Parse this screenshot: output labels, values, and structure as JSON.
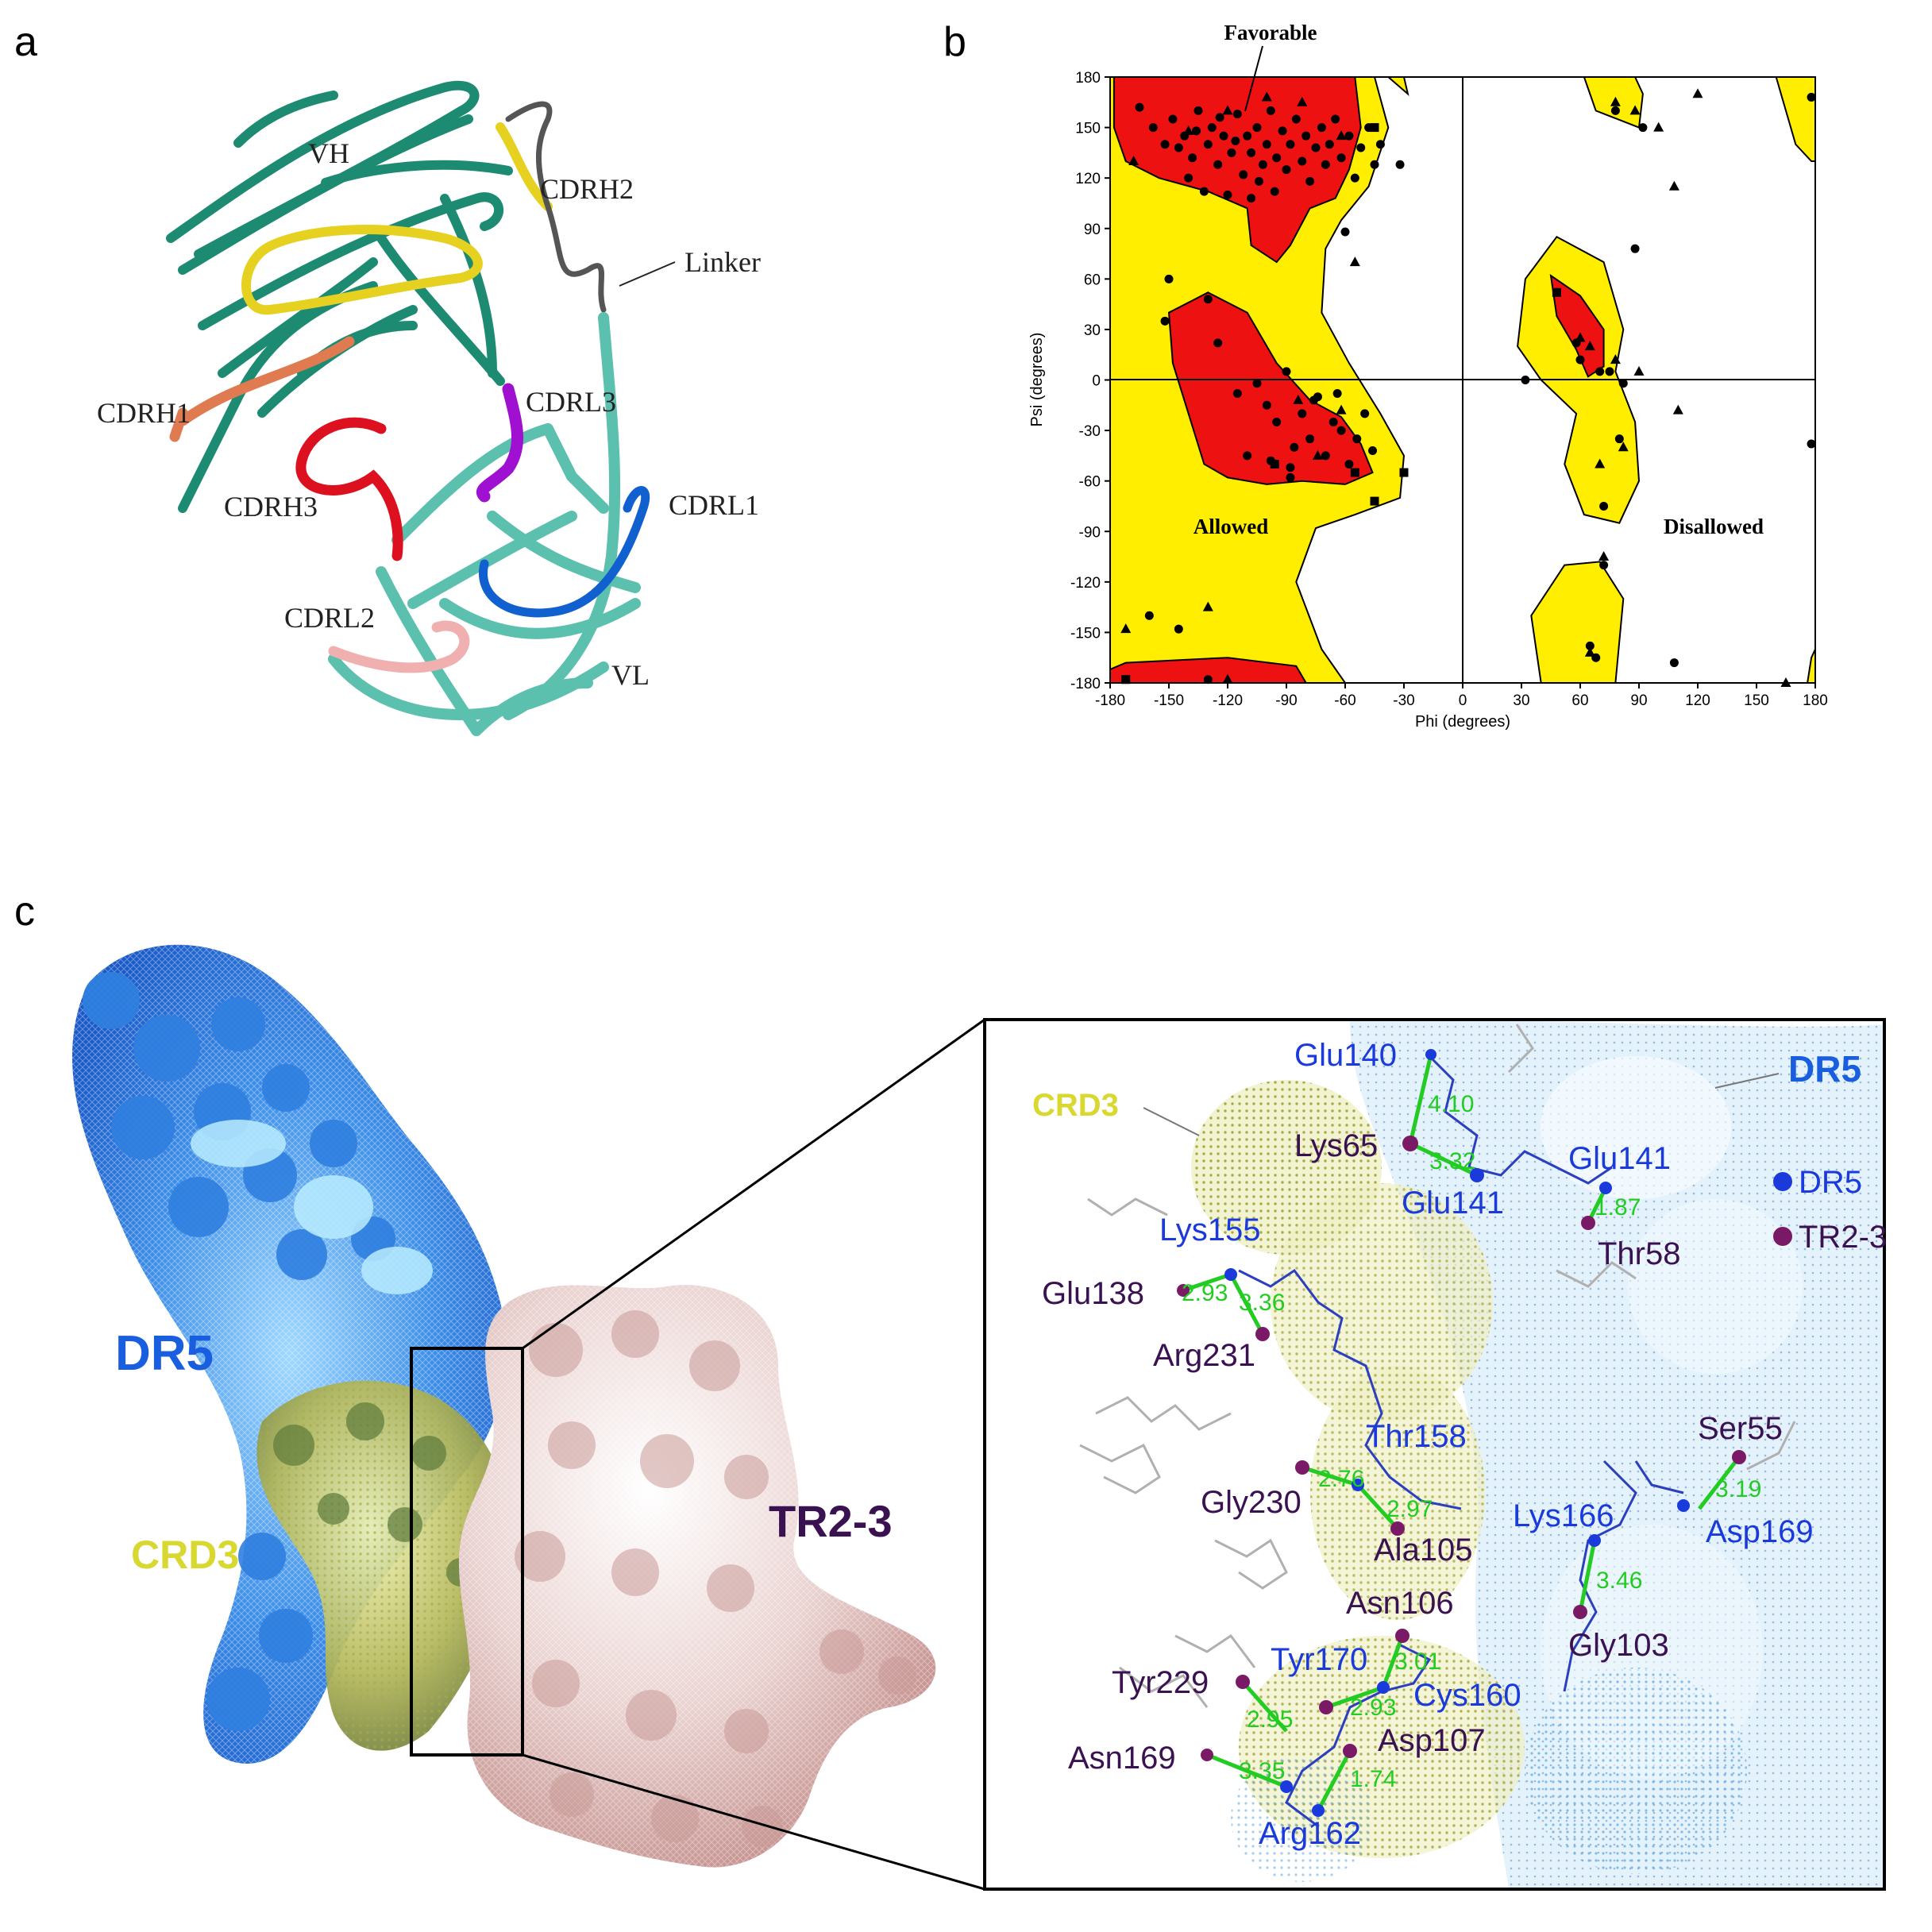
{
  "panels": {
    "a": "a",
    "b": "b",
    "c": "c"
  },
  "panel_a": {
    "labels": {
      "vh": "VH",
      "cdrh2": "CDRH2",
      "linker": "Linker",
      "cdrh1": "CDRH1",
      "cdrl3": "CDRL3",
      "cdrh3": "CDRH3",
      "cdrl1": "CDRL1",
      "cdrl2": "CDRL2",
      "vl": "VL"
    },
    "colors": {
      "vh_strand": "#1d8a72",
      "vl_strand": "#5cc0ae",
      "cdrh1": "#e07a50",
      "cdrh2": "#e6d020",
      "cdrh3": "#dd1020",
      "cdrl1": "#1060d0",
      "cdrl2": "#f0b0b0",
      "cdrl3": "#a010d0",
      "linker": "#555555"
    }
  },
  "chart_data": {
    "type": "scatter",
    "xlabel": "Phi (degrees)",
    "ylabel": "Psi (degrees)",
    "xlim": [
      -180,
      180
    ],
    "ylim": [
      -180,
      180
    ],
    "xticks": [
      -180,
      -150,
      -120,
      -90,
      -60,
      -30,
      0,
      30,
      60,
      90,
      120,
      150,
      180
    ],
    "yticks": [
      180,
      150,
      120,
      90,
      60,
      30,
      0,
      -30,
      -60,
      -90,
      -120,
      -150,
      -180
    ],
    "region_labels": {
      "favorable": "Favorable",
      "allowed": "Allowed",
      "disallowed": "Disallowed"
    },
    "region_colors": {
      "favorable": "#ee1111",
      "allowed": "#ffee00",
      "disallowed": "#ffffff"
    },
    "series": [
      {
        "marker": "circle",
        "points": [
          [
            -165,
            162
          ],
          [
            -158,
            150
          ],
          [
            -152,
            140
          ],
          [
            -148,
            155
          ],
          [
            -142,
            145
          ],
          [
            -138,
            132
          ],
          [
            -135,
            160
          ],
          [
            -130,
            140
          ],
          [
            -128,
            150
          ],
          [
            -125,
            128
          ],
          [
            -122,
            145
          ],
          [
            -118,
            135
          ],
          [
            -115,
            158
          ],
          [
            -112,
            122
          ],
          [
            -110,
            145
          ],
          [
            -108,
            135
          ],
          [
            -105,
            150
          ],
          [
            -102,
            128
          ],
          [
            -100,
            140
          ],
          [
            -98,
            160
          ],
          [
            -95,
            132
          ],
          [
            -92,
            148
          ],
          [
            -90,
            125
          ],
          [
            -88,
            140
          ],
          [
            -85,
            155
          ],
          [
            -82,
            130
          ],
          [
            -80,
            145
          ],
          [
            -78,
            118
          ],
          [
            -75,
            138
          ],
          [
            -72,
            150
          ],
          [
            -70,
            128
          ],
          [
            -68,
            140
          ],
          [
            -65,
            155
          ],
          [
            -62,
            132
          ],
          [
            -58,
            145
          ],
          [
            -55,
            120
          ],
          [
            -52,
            138
          ],
          [
            -48,
            150
          ],
          [
            -45,
            128
          ],
          [
            -42,
            140
          ],
          [
            -140,
            120
          ],
          [
            -132,
            112
          ],
          [
            -120,
            110
          ],
          [
            -108,
            108
          ],
          [
            -96,
            112
          ],
          [
            -145,
            138
          ],
          [
            -136,
            148
          ],
          [
            -124,
            156
          ],
          [
            -116,
            142
          ],
          [
            -104,
            118
          ],
          [
            -150,
            60
          ],
          [
            -152,
            35
          ],
          [
            -130,
            48
          ],
          [
            -125,
            22
          ],
          [
            -115,
            -8
          ],
          [
            -105,
            -2
          ],
          [
            -100,
            -15
          ],
          [
            -95,
            -25
          ],
          [
            -90,
            5
          ],
          [
            -86,
            -40
          ],
          [
            -82,
            -20
          ],
          [
            -78,
            -35
          ],
          [
            -74,
            -10
          ],
          [
            -70,
            -45
          ],
          [
            -66,
            -25
          ],
          [
            -62,
            -30
          ],
          [
            -58,
            -50
          ],
          [
            -54,
            -35
          ],
          [
            -50,
            -20
          ],
          [
            -46,
            -42
          ],
          [
            -110,
            -45
          ],
          [
            -98,
            -48
          ],
          [
            -88,
            -52
          ],
          [
            -76,
            -12
          ],
          [
            -64,
            -8
          ],
          [
            -60,
            88
          ],
          [
            -32,
            128
          ],
          [
            -160,
            -140
          ],
          [
            -145,
            -148
          ],
          [
            -130,
            -178
          ],
          [
            -88,
            -58
          ],
          [
            32,
            0
          ],
          [
            48,
            52
          ],
          [
            58,
            22
          ],
          [
            60,
            12
          ],
          [
            70,
            5
          ],
          [
            80,
            -35
          ],
          [
            72,
            -75
          ],
          [
            72,
            -110
          ],
          [
            68,
            -165
          ],
          [
            82,
            -2
          ],
          [
            75,
            5
          ],
          [
            78,
            160
          ],
          [
            88,
            78
          ],
          [
            92,
            150
          ],
          [
            108,
            -168
          ],
          [
            178,
            -38
          ],
          [
            178,
            168
          ],
          [
            65,
            -158
          ]
        ]
      },
      {
        "marker": "triangle",
        "points": [
          [
            -168,
            130
          ],
          [
            -140,
            148
          ],
          [
            -120,
            160
          ],
          [
            -100,
            168
          ],
          [
            -82,
            165
          ],
          [
            -62,
            145
          ],
          [
            -55,
            70
          ],
          [
            -74,
            -45
          ],
          [
            -62,
            -18
          ],
          [
            -84,
            -12
          ],
          [
            -172,
            -148
          ],
          [
            -130,
            -135
          ],
          [
            -120,
            -178
          ],
          [
            60,
            25
          ],
          [
            65,
            20
          ],
          [
            70,
            -50
          ],
          [
            82,
            -40
          ],
          [
            90,
            5
          ],
          [
            110,
            -18
          ],
          [
            72,
            -105
          ],
          [
            65,
            -162
          ],
          [
            78,
            165
          ],
          [
            88,
            160
          ],
          [
            100,
            150
          ],
          [
            108,
            115
          ],
          [
            120,
            170
          ],
          [
            165,
            -180
          ],
          [
            78,
            12
          ]
        ]
      },
      {
        "marker": "square",
        "points": [
          [
            -45,
            150
          ],
          [
            -55,
            -55
          ],
          [
            -30,
            -55
          ],
          [
            -45,
            -72
          ],
          [
            -172,
            -178
          ],
          [
            48,
            52
          ],
          [
            -96,
            -50
          ]
        ]
      }
    ]
  },
  "panel_c": {
    "left_labels": {
      "dr5": "DR5",
      "crd3": "CRD3",
      "tr23": "TR2-3"
    },
    "inset": {
      "dr5_label": "DR5",
      "crd3_label": "CRD3",
      "legend": [
        {
          "label": "DR5",
          "color": "#1a3adb"
        },
        {
          "label": "TR2-3",
          "color": "#7a1a66"
        }
      ],
      "residues_dr5": [
        "Glu140",
        "Glu141",
        "Glu141",
        "Lys155",
        "Thr158",
        "Lys166",
        "Asp169",
        "Tyr170",
        "Cys160",
        "Arg162"
      ],
      "residues_tr": [
        "Lys65",
        "Thr58",
        "Glu138",
        "Arg231",
        "Ser55",
        "Gly230",
        "Ala105",
        "Asn106",
        "Gly103",
        "Tyr229",
        "Asp107",
        "Asn169"
      ],
      "distances": [
        "4.10",
        "3.32",
        "1.87",
        "2.93",
        "3.36",
        "2.76",
        "2.97",
        "3.19",
        "3.46",
        "3.01",
        "2.93",
        "2.95",
        "3.35",
        "1.74"
      ]
    },
    "colors": {
      "dr5": "#1a5ee0",
      "crd3": "#d8d830",
      "tr23": "#3a1252",
      "hbond": "#22cc22"
    }
  }
}
